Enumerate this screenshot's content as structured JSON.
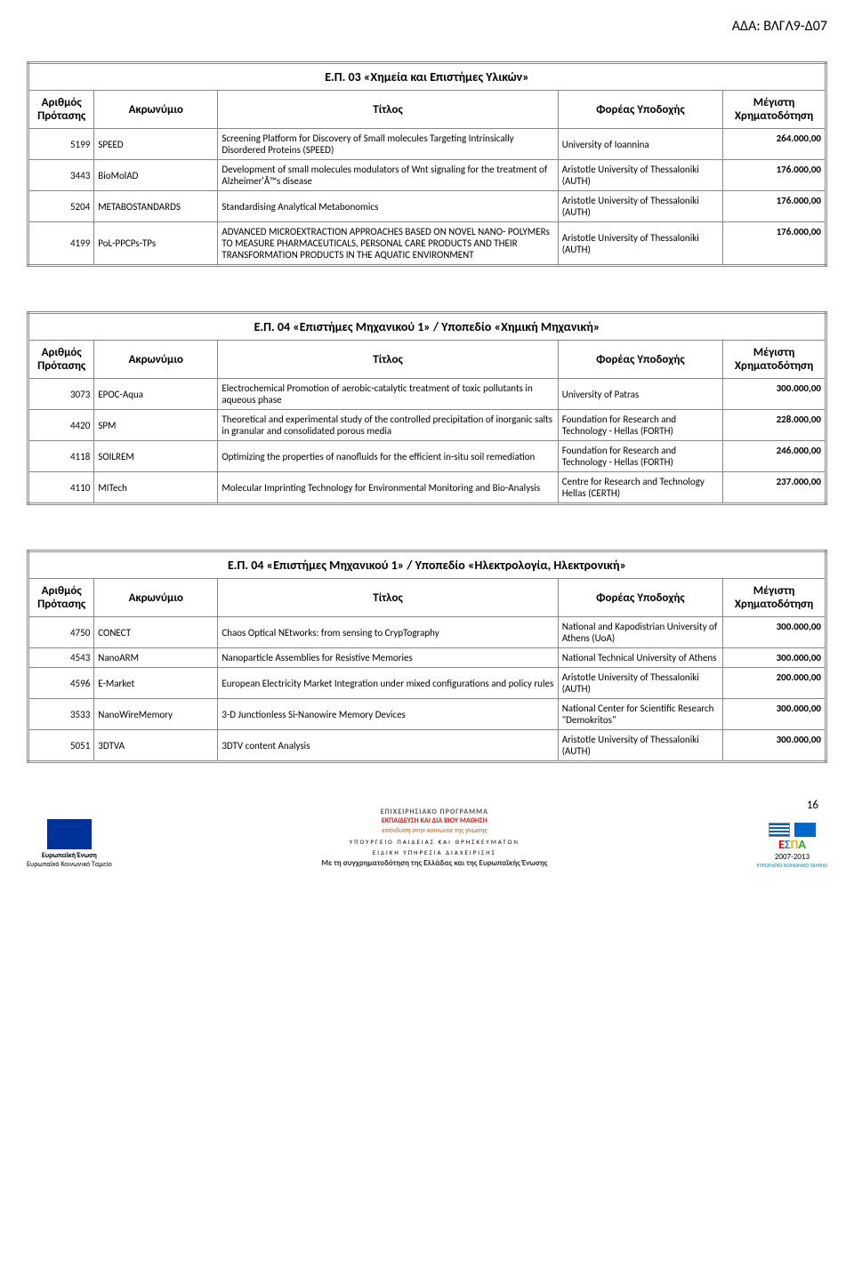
{
  "header_code": "ΑΔΑ: ΒΛΓΛ9-Δ07",
  "columns": {
    "num": "Αριθμός Πρότασης",
    "acronym": "Ακρωνύμιο",
    "title": "Τίτλος",
    "org": "Φορέας Υποδοχής",
    "fund": "Μέγιστη Χρηματοδότηση"
  },
  "tables": [
    {
      "title": "Ε.Π. 03 «Χημεία και Επιστήμες Υλικών»",
      "rows": [
        {
          "num": "5199",
          "acronym": "SPEED",
          "title": "Screening Platform for Discovery of Small molecules Targeting Intrinsically Disordered Proteins (SPEED)",
          "org": "University of Ioannina",
          "fund": "264.000,00"
        },
        {
          "num": "3443",
          "acronym": "BioMolAD",
          "title": "Development of small molecules modulators of Wnt signaling for the treatment of Alzheimer'Â™s disease",
          "org": "Aristotle University of Thessaloniki (AUTH)",
          "fund": "176.000,00"
        },
        {
          "num": "5204",
          "acronym": "METABOSTANDARDS",
          "title": "Standardising Analytical Metabonomics",
          "org": "Aristotle University of Thessaloniki (AUTH)",
          "fund": "176.000,00"
        },
        {
          "num": "4199",
          "acronym": "PoL-PPCPs-TPs",
          "title": "ADVANCED MICROEXTRACTION APPROACHES BASED ON NOVEL NANO- POLYMERs  TO MEASURE PHARMACEUTICALS, PERSONAL CARE PRODUCTS AND THEIR TRANSFORMATION PRODUCTS IN THE AQUATIC ENVIRONMENT",
          "org": "Aristotle University of Thessaloniki (AUTH)",
          "fund": "176.000,00"
        }
      ]
    },
    {
      "title": "Ε.Π. 04 «Επιστήμες Μηχανικού 1» / Υποπεδίο «Χημική Μηχανική»",
      "rows": [
        {
          "num": "3073",
          "acronym": "EPOC-Aqua",
          "title": "Electrochemical Promotion of aerobic-catalytic treatment of toxic pollutants in aqueous phase",
          "org": "University of Patras",
          "fund": "300.000,00"
        },
        {
          "num": "4420",
          "acronym": "SPM",
          "title": "Theoretical and experimental study of the controlled precipitation of inorganic salts in granular and consolidated porous media",
          "org": "Foundation for Research and Technology - Hellas (FORTH)",
          "fund": "228.000,00"
        },
        {
          "num": "4118",
          "acronym": "SOILREM",
          "title": "Optimizing the properties of nanofluids for the efficient in-situ soil remediation",
          "org": "Foundation for Research and Technology - Hellas (FORTH)",
          "fund": "246.000,00"
        },
        {
          "num": "4110",
          "acronym": "MITech",
          "title": "Molecular Imprinting Technology for Environmental Monitoring and Bio-Analysis",
          "org": "Centre for Research and Technology Hellas (CERTH)",
          "fund": "237.000,00"
        }
      ]
    },
    {
      "title": "Ε.Π. 04 «Επιστήμες Μηχανικού 1» / Υποπεδίο «Ηλεκτρολογία, Ηλεκτρονική»",
      "rows": [
        {
          "num": "4750",
          "acronym": "CONECT",
          "title": "Chaos Optical NEtworks: from sensing to CrypTography",
          "org": "National and Kapodistrian University of Athens (UoA)",
          "fund": "300.000,00"
        },
        {
          "num": "4543",
          "acronym": "NanoARM",
          "title": "Nanoparticle Assemblies for Resistive Memories",
          "org": "National Technical University of Athens",
          "fund": "300.000,00"
        },
        {
          "num": "4596",
          "acronym": "E-Market",
          "title": "European Electricity Market Integration under mixed configurations and policy rules",
          "org": "Aristotle University of Thessaloniki (AUTH)",
          "fund": "200.000,00"
        },
        {
          "num": "3533",
          "acronym": "NanoWireMemory",
          "title": "3-D Junctionless Si-Nanowire Memory Devices",
          "org": "National Center for Scientific Research \"Demokritos\"",
          "fund": "300.000,00"
        },
        {
          "num": "5051",
          "acronym": "3DTVA",
          "title": "3DTV content Analysis",
          "org": "Aristotle University of Thessaloniki (AUTH)",
          "fund": "300.000,00"
        }
      ]
    }
  ],
  "footer": {
    "page": "16",
    "eu_label1": "Ευρωπαϊκή Ένωση",
    "eu_label2": "Ευρωπαϊκό Κοινωνικό Ταμείο",
    "prog1": "ΕΠΙΧΕΙΡΗΣΙΑΚΟ ΠΡΟΓΡΑΜΜΑ",
    "prog2": "ΕΚΠΑΙΔΕΥΣΗ ΚΑΙ ΔΙΑ ΒΙΟΥ ΜΑΘΗΣΗ",
    "prog3": "επένδυση στην κοινωνία της γνώσης",
    "min1": "ΥΠΟΥΡΓΕΙΟ ΠΑΙΔΕΙΑΣ ΚΑΙ ΘΡΗΣΚΕΥΜΑΤΩΝ",
    "min2": "ΕΙΔΙΚΗ ΥΠΗΡΕΣΙΑ ΔΙΑΧΕΙΡΙΣΗΣ",
    "espa_years": "2007-2013",
    "espa_sub": "ΕΥΡΩΠΑΪΚΟ ΚΟΙΝΩΝΙΚΟ ΤΑΜΕΙΟ",
    "cofund": "Με τη συγχρηματοδότηση της Ελλάδας και της Ευρωπαϊκής Ένωσης"
  }
}
